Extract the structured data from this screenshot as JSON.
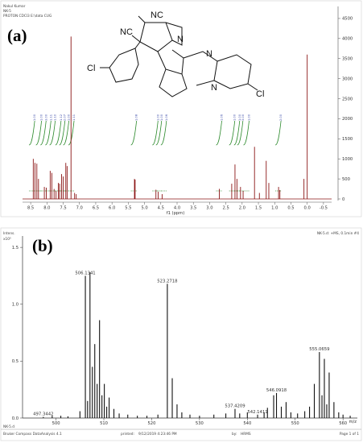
{
  "panel_a": {
    "header_lines": [
      "Nakul Kumar",
      "NK-5",
      "PROTON CDCl3 E:\\data CUG"
    ],
    "label": "(a)",
    "structure_labels": [
      "NC",
      "NC",
      "N",
      "N",
      "N",
      "Cl",
      "Cl"
    ]
  },
  "panel_b": {
    "label": "(b)",
    "top_left_line1": "Intens.",
    "top_left_line2": "x10⁵",
    "top_right": "NK-5.d: +MS, 0.1min #4",
    "footer_left": "NK-5.d",
    "footer_software": "Bruker Compass DataAnalysis 4.1",
    "footer_printed_label": "printed:",
    "footer_printed_value": "9/12/2019 4:23:46 PM",
    "footer_by_label": "by:",
    "footer_by_value": "HRMS",
    "footer_page": "Page 1 of 1"
  },
  "chart_data": [
    {
      "type": "line",
      "xlabel": "f1 (ppm)",
      "xlim": [
        8.75,
        -0.75
      ],
      "x_reversed": true,
      "ylim": [
        -200,
        4800
      ],
      "x_ticks": [
        "8.5",
        "8.0",
        "7.5",
        "7.0",
        "6.5",
        "6.0",
        "5.5",
        "5.0",
        "4.5",
        "4.0",
        "3.5",
        "3.0",
        "2.5",
        "2.0",
        "1.5",
        "1.0",
        "0.5",
        "0.0",
        "-0.5"
      ],
      "y_ticks": [
        "4500",
        "4000",
        "3500",
        "3000",
        "2500",
        "2000",
        "1500",
        "1000",
        "500",
        "0"
      ],
      "integrals": [
        {
          "x": 8.45,
          "value": "1.00"
        },
        {
          "x": 8.24,
          "value": "1.00"
        },
        {
          "x": 8.1,
          "value": "3.00"
        },
        {
          "x": 7.95,
          "value": "1.11"
        },
        {
          "x": 7.82,
          "value": "1.10"
        },
        {
          "x": 7.64,
          "value": "1.12"
        },
        {
          "x": 7.52,
          "value": "2.07"
        },
        {
          "x": 7.4,
          "value": "1.00"
        },
        {
          "x": 7.24,
          "value": "1.11"
        },
        {
          "x": 5.32,
          "value": "1.08"
        },
        {
          "x": 4.66,
          "value": "1.00"
        },
        {
          "x": 4.55,
          "value": "1.00"
        },
        {
          "x": 4.4,
          "value": "1.06"
        },
        {
          "x": 2.7,
          "value": "1.06"
        },
        {
          "x": 2.3,
          "value": "1.00"
        },
        {
          "x": 2.15,
          "value": "1.00"
        },
        {
          "x": 2.05,
          "value": "3.00"
        },
        {
          "x": 1.86,
          "value": "1.00"
        },
        {
          "x": 0.88,
          "value": "2.00"
        }
      ],
      "peaks": [
        {
          "x": 8.42,
          "y": 1000
        },
        {
          "x": 8.37,
          "y": 900
        },
        {
          "x": 8.31,
          "y": 880
        },
        {
          "x": 8.26,
          "y": 500
        },
        {
          "x": 8.08,
          "y": 300
        },
        {
          "x": 8.02,
          "y": 280
        },
        {
          "x": 7.9,
          "y": 700
        },
        {
          "x": 7.85,
          "y": 650
        },
        {
          "x": 7.78,
          "y": 250
        },
        {
          "x": 7.72,
          "y": 200
        },
        {
          "x": 7.65,
          "y": 400
        },
        {
          "x": 7.61,
          "y": 380
        },
        {
          "x": 7.55,
          "y": 620
        },
        {
          "x": 7.5,
          "y": 560
        },
        {
          "x": 7.42,
          "y": 900
        },
        {
          "x": 7.38,
          "y": 820
        },
        {
          "x": 7.26,
          "y": 4050
        },
        {
          "x": 7.15,
          "y": 150
        },
        {
          "x": 7.1,
          "y": 120
        },
        {
          "x": 5.31,
          "y": 500
        },
        {
          "x": 5.29,
          "y": 480
        },
        {
          "x": 4.65,
          "y": 230
        },
        {
          "x": 4.58,
          "y": 180
        },
        {
          "x": 4.46,
          "y": 120
        },
        {
          "x": 2.7,
          "y": 250
        },
        {
          "x": 2.32,
          "y": 380
        },
        {
          "x": 2.22,
          "y": 860
        },
        {
          "x": 2.16,
          "y": 500
        },
        {
          "x": 2.05,
          "y": 300
        },
        {
          "x": 1.97,
          "y": 200
        },
        {
          "x": 1.62,
          "y": 1300
        },
        {
          "x": 1.47,
          "y": 150
        },
        {
          "x": 1.26,
          "y": 950
        },
        {
          "x": 1.18,
          "y": 400
        },
        {
          "x": 0.88,
          "y": 300
        },
        {
          "x": 0.84,
          "y": 220
        },
        {
          "x": 0.1,
          "y": 500
        },
        {
          "x": 0.0,
          "y": 3600
        }
      ]
    },
    {
      "type": "bar",
      "xlim": [
        493,
        563
      ],
      "ylim": [
        0,
        1.6
      ],
      "x_ticks": [
        "500",
        "510",
        "520",
        "530",
        "540",
        "550",
        "560"
      ],
      "x_unit": "m/z",
      "y_ticks": [
        "1.5",
        "1.0",
        "0.5",
        "0.0"
      ],
      "peaks": [
        {
          "mz": 497.3442,
          "y": 0.01,
          "label": "497.3442"
        },
        {
          "mz": 499.2,
          "y": 0.02
        },
        {
          "mz": 501.0,
          "y": 0.02
        },
        {
          "mz": 502.5,
          "y": 0.015
        },
        {
          "mz": 505.0,
          "y": 0.06
        },
        {
          "mz": 506.1341,
          "y": 1.25,
          "label": "506.1341"
        },
        {
          "mz": 506.6,
          "y": 0.15
        },
        {
          "mz": 507.1,
          "y": 1.28
        },
        {
          "mz": 507.6,
          "y": 0.45
        },
        {
          "mz": 508.1,
          "y": 0.65
        },
        {
          "mz": 508.6,
          "y": 0.3
        },
        {
          "mz": 509.1,
          "y": 0.86
        },
        {
          "mz": 509.6,
          "y": 0.2
        },
        {
          "mz": 510.1,
          "y": 0.3
        },
        {
          "mz": 510.6,
          "y": 0.1
        },
        {
          "mz": 511.1,
          "y": 0.18
        },
        {
          "mz": 512.1,
          "y": 0.08
        },
        {
          "mz": 513.2,
          "y": 0.04
        },
        {
          "mz": 515.0,
          "y": 0.03
        },
        {
          "mz": 517.0,
          "y": 0.02
        },
        {
          "mz": 519.0,
          "y": 0.02
        },
        {
          "mz": 521.3,
          "y": 0.03
        },
        {
          "mz": 523.2718,
          "y": 1.18,
          "label": "523.2718"
        },
        {
          "mz": 524.3,
          "y": 0.35
        },
        {
          "mz": 525.3,
          "y": 0.12
        },
        {
          "mz": 526.3,
          "y": 0.05
        },
        {
          "mz": 528.0,
          "y": 0.03
        },
        {
          "mz": 530.0,
          "y": 0.02
        },
        {
          "mz": 533.0,
          "y": 0.03
        },
        {
          "mz": 535.5,
          "y": 0.04
        },
        {
          "mz": 537.4209,
          "y": 0.08,
          "label": "537.4209"
        },
        {
          "mz": 538.4,
          "y": 0.04
        },
        {
          "mz": 540.0,
          "y": 0.05
        },
        {
          "mz": 542.1411,
          "y": 0.03,
          "label": "542.1411"
        },
        {
          "mz": 543.5,
          "y": 0.05
        },
        {
          "mz": 544.2,
          "y": 0.09
        },
        {
          "mz": 545.5,
          "y": 0.2
        },
        {
          "mz": 546.0918,
          "y": 0.22,
          "label": "546.0918"
        },
        {
          "mz": 547.1,
          "y": 0.1
        },
        {
          "mz": 548.1,
          "y": 0.14
        },
        {
          "mz": 549.1,
          "y": 0.05
        },
        {
          "mz": 550.5,
          "y": 0.04
        },
        {
          "mz": 552.0,
          "y": 0.06
        },
        {
          "mz": 553.0,
          "y": 0.1
        },
        {
          "mz": 554.0,
          "y": 0.3
        },
        {
          "mz": 555.0659,
          "y": 0.58,
          "label": "555.0659"
        },
        {
          "mz": 555.6,
          "y": 0.2
        },
        {
          "mz": 556.1,
          "y": 0.52
        },
        {
          "mz": 556.6,
          "y": 0.12
        },
        {
          "mz": 557.1,
          "y": 0.4
        },
        {
          "mz": 558.1,
          "y": 0.14
        },
        {
          "mz": 559.1,
          "y": 0.05
        },
        {
          "mz": 560.0,
          "y": 0.03
        },
        {
          "mz": 561.5,
          "y": 0.02
        }
      ]
    }
  ]
}
